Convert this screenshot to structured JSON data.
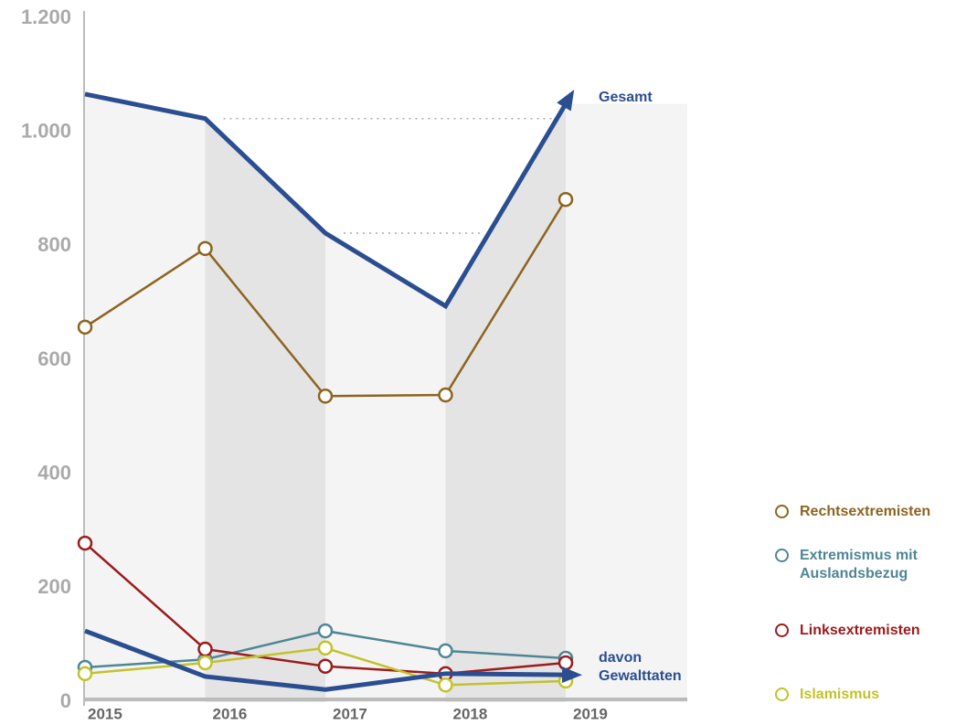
{
  "chart_data": {
    "type": "line",
    "categories": [
      "2015",
      "2016",
      "2017",
      "2018",
      "2019"
    ],
    "ylim": [
      0,
      1200
    ],
    "yticks": [
      0,
      200,
      400,
      600,
      800,
      {
        "value": 1000,
        "label": "1.000"
      },
      {
        "value": 1200,
        "label": "1.200"
      }
    ],
    "series": [
      {
        "name": "Gesamt",
        "color": "#2b4e91",
        "values": [
          1067,
          1024,
          823,
          695,
          1050
        ],
        "markers": false
      },
      {
        "name": "Rechtsextremisten",
        "color": "#8d6420",
        "values": [
          658,
          796,
          537,
          539,
          882
        ],
        "markers": true
      },
      {
        "name": "Extremismus mit Auslandsbezug",
        "color": "#4f8696",
        "values": [
          61,
          75,
          125,
          90,
          77
        ],
        "markers": true
      },
      {
        "name": "Linksextremisten",
        "color": "#9b1c1c",
        "values": [
          279,
          93,
          63,
          50,
          69
        ],
        "markers": true
      },
      {
        "name": "Islamismus",
        "color": "#c3c22a",
        "values": [
          50,
          69,
          95,
          30,
          37
        ],
        "markers": true
      },
      {
        "name": "davon Gewalttaten",
        "color": "#2b4e91",
        "values": [
          125,
          45,
          22,
          50,
          48
        ],
        "markers": false
      }
    ]
  }
}
